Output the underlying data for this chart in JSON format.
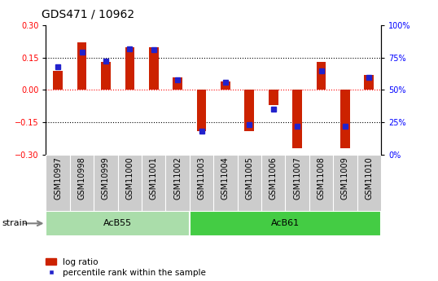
{
  "title": "GDS471 / 10962",
  "samples": [
    "GSM10997",
    "GSM10998",
    "GSM10999",
    "GSM11000",
    "GSM11001",
    "GSM11002",
    "GSM11003",
    "GSM11004",
    "GSM11005",
    "GSM11006",
    "GSM11007",
    "GSM11008",
    "GSM11009",
    "GSM11010"
  ],
  "log_ratio": [
    0.09,
    0.22,
    0.13,
    0.2,
    0.2,
    0.06,
    -0.19,
    0.04,
    -0.19,
    -0.07,
    -0.27,
    0.13,
    -0.27,
    0.07
  ],
  "percentile": [
    68,
    79,
    72,
    82,
    81,
    58,
    18,
    56,
    23,
    35,
    22,
    65,
    22,
    60
  ],
  "groups": [
    {
      "label": "AcB55",
      "start": 0,
      "end": 6,
      "color": "#aaddaa"
    },
    {
      "label": "AcB61",
      "start": 6,
      "end": 14,
      "color": "#44cc44"
    }
  ],
  "ylim_left": [
    -0.3,
    0.3
  ],
  "ylim_right": [
    0,
    100
  ],
  "yticks_left": [
    -0.3,
    -0.15,
    0,
    0.15,
    0.3
  ],
  "yticks_right": [
    0,
    25,
    50,
    75,
    100
  ],
  "hlines_dotted": [
    0.15,
    -0.15
  ],
  "hline_red": 0,
  "bar_color": "#cc2200",
  "percentile_color": "#2222cc",
  "bar_width": 0.4,
  "percentile_marker_size": 4,
  "title_fontsize": 10,
  "tick_fontsize": 7,
  "label_fontsize": 7,
  "group_fontsize": 8,
  "legend_fontsize": 7.5
}
